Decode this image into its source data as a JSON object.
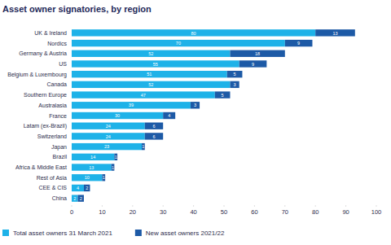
{
  "chart_data": {
    "type": "bar",
    "orientation": "horizontal",
    "stacked": true,
    "data_labels": true,
    "grid": false,
    "legend": "bottom-left",
    "title": "Asset owner signatories, by region",
    "categories": [
      "UK & Ireland",
      "Nordics",
      "Germany & Austria",
      "US",
      "Belgium & Luxembourg",
      "Canada",
      "Southern Europe",
      "Australasia",
      "France",
      "Latam (ex-Brazil)",
      "Switzerland",
      "Japan",
      "Brazil",
      "Africa & Middle East",
      "Rest of Asia",
      "CEE & CIS",
      "China"
    ],
    "series": [
      {
        "name": "Total asset owners 31 March 2021",
        "color": "#1eb2e8",
        "values": [
          80,
          70,
          52,
          55,
          51,
          52,
          47,
          39,
          30,
          24,
          24,
          23,
          14,
          13,
          10,
          4,
          2
        ]
      },
      {
        "name": "New asset owners 2021/22",
        "color": "#1d5aa6",
        "values": [
          13,
          9,
          18,
          9,
          5,
          3,
          5,
          3,
          4,
          6,
          6,
          1,
          1,
          1,
          1,
          2,
          2
        ]
      }
    ],
    "xlim": [
      0,
      100
    ],
    "xticks": [
      0,
      10,
      20,
      30,
      40,
      50,
      60,
      70,
      80,
      90,
      100
    ]
  }
}
